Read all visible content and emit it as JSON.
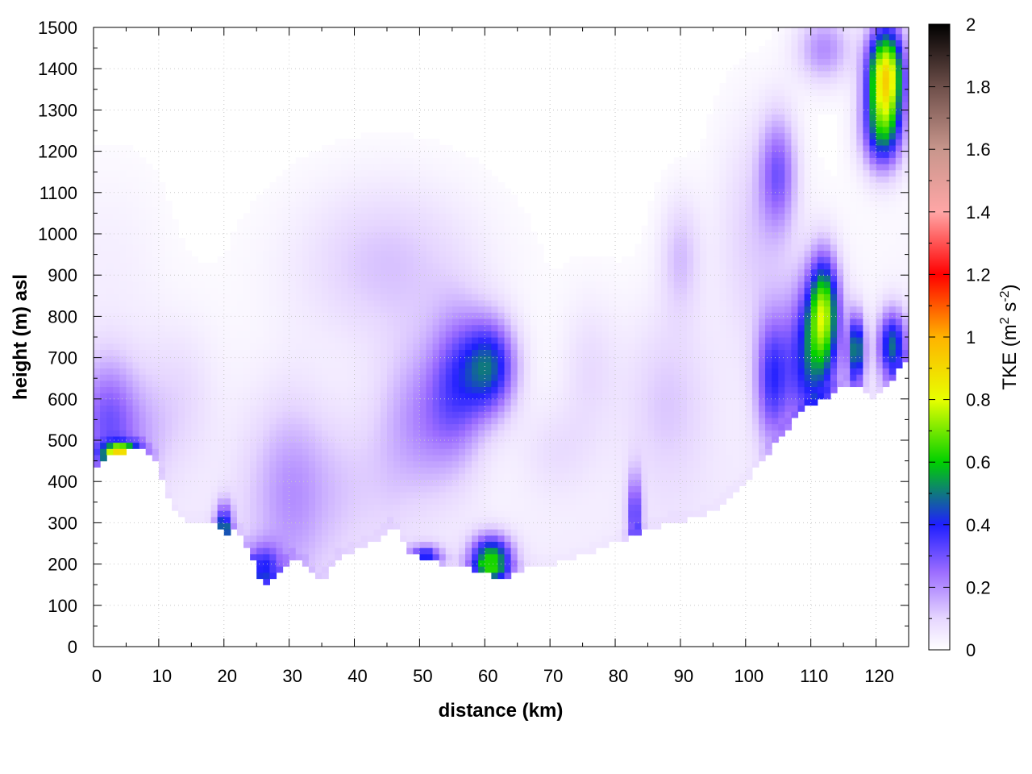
{
  "chart_data": {
    "type": "heatmap",
    "xlabel": "distance (km)",
    "ylabel": "height (m) asl",
    "colorbar_label_main": "TKE (m",
    "colorbar_label_sup1": "2",
    "colorbar_label_mid": " s",
    "colorbar_label_sup2": "-2",
    "colorbar_label_end": ")",
    "xlim": [
      0,
      125
    ],
    "ylim": [
      0,
      1500
    ],
    "clim": [
      0,
      2
    ],
    "x_ticks": [
      0,
      10,
      20,
      30,
      40,
      50,
      60,
      70,
      80,
      90,
      100,
      110,
      120
    ],
    "y_ticks": [
      0,
      100,
      200,
      300,
      400,
      500,
      600,
      700,
      800,
      900,
      1000,
      1100,
      1200,
      1300,
      1400,
      1500
    ],
    "c_ticks": [
      0,
      0.2,
      0.4,
      0.6,
      0.8,
      1,
      1.2,
      1.4,
      1.6,
      1.8,
      2
    ],
    "x_tick_labels": [
      "0",
      "10",
      "20",
      "30",
      "40",
      "50",
      "60",
      "70",
      "80",
      "90",
      "100",
      "110",
      "120"
    ],
    "y_tick_labels": [
      "0",
      "100",
      "200",
      "300",
      "400",
      "500",
      "600",
      "700",
      "800",
      "900",
      "1000",
      "1100",
      "1200",
      "1300",
      "1400",
      "1500"
    ],
    "c_tick_labels": [
      "0",
      "0.2",
      "0.4",
      "0.6",
      "0.8",
      "1",
      "1.2",
      "1.4",
      "1.6",
      "1.8",
      "2"
    ],
    "grid": true,
    "colormap": [
      {
        "v": 0.0,
        "c": "#ffffff"
      },
      {
        "v": 0.1,
        "c": "#e6d6ff"
      },
      {
        "v": 0.25,
        "c": "#9b6cff"
      },
      {
        "v": 0.4,
        "c": "#1f1fff"
      },
      {
        "v": 0.6,
        "c": "#00d000"
      },
      {
        "v": 0.8,
        "c": "#e8ff00"
      },
      {
        "v": 1.0,
        "c": "#ffb300"
      },
      {
        "v": 1.2,
        "c": "#ff0000"
      },
      {
        "v": 1.4,
        "c": "#ffa6a6"
      },
      {
        "v": 1.6,
        "c": "#c8968c"
      },
      {
        "v": 1.8,
        "c": "#6e4f4a"
      },
      {
        "v": 2.0,
        "c": "#000000"
      }
    ],
    "terrain": [
      [
        0,
        420
      ],
      [
        2,
        455
      ],
      [
        4,
        470
      ],
      [
        6,
        480
      ],
      [
        8,
        478
      ],
      [
        10,
        440
      ],
      [
        12,
        330
      ],
      [
        14,
        305
      ],
      [
        16,
        300
      ],
      [
        18,
        300
      ],
      [
        19.5,
        285
      ],
      [
        20,
        270
      ],
      [
        22,
        285
      ],
      [
        24,
        230
      ],
      [
        25.5,
        160
      ],
      [
        27,
        155
      ],
      [
        28.5,
        175
      ],
      [
        30,
        215
      ],
      [
        32,
        200
      ],
      [
        34,
        170
      ],
      [
        35,
        155
      ],
      [
        36,
        180
      ],
      [
        38,
        220
      ],
      [
        40,
        230
      ],
      [
        42,
        245
      ],
      [
        44,
        265
      ],
      [
        46,
        295
      ],
      [
        48,
        235
      ],
      [
        50,
        215
      ],
      [
        52,
        210
      ],
      [
        54,
        200
      ],
      [
        56,
        195
      ],
      [
        58,
        190
      ],
      [
        60,
        180
      ],
      [
        62,
        160
      ],
      [
        64,
        175
      ],
      [
        66,
        190
      ],
      [
        68,
        195
      ],
      [
        70,
        198
      ],
      [
        72,
        205
      ],
      [
        74,
        215
      ],
      [
        76,
        225
      ],
      [
        78,
        240
      ],
      [
        80,
        255
      ],
      [
        82,
        260
      ],
      [
        84,
        275
      ],
      [
        86,
        290
      ],
      [
        88,
        298
      ],
      [
        90,
        305
      ],
      [
        92,
        310
      ],
      [
        94,
        320
      ],
      [
        96,
        340
      ],
      [
        98,
        370
      ],
      [
        100,
        400
      ],
      [
        102,
        440
      ],
      [
        104,
        480
      ],
      [
        106,
        520
      ],
      [
        108,
        560
      ],
      [
        110,
        590
      ],
      [
        112,
        600
      ],
      [
        114,
        620
      ],
      [
        116,
        640
      ],
      [
        118,
        620
      ],
      [
        119.5,
        600
      ],
      [
        121,
        620
      ],
      [
        123,
        660
      ],
      [
        125,
        700
      ]
    ],
    "blobs": [
      {
        "x": 2,
        "y": 560,
        "sx": 3.5,
        "sy": 110,
        "v": 0.22
      },
      {
        "x": 4,
        "y": 470,
        "sx": 2.0,
        "sy": 18,
        "v": 0.55
      },
      {
        "x": 6,
        "y": 500,
        "sx": 5,
        "sy": 90,
        "v": 0.07
      },
      {
        "x": 2,
        "y": 950,
        "sx": 6,
        "sy": 160,
        "v": 0.03
      },
      {
        "x": 20,
        "y": 290,
        "sx": 0.9,
        "sy": 40,
        "v": 0.4
      },
      {
        "x": 13,
        "y": 620,
        "sx": 4,
        "sy": 120,
        "v": 0.07
      },
      {
        "x": 26,
        "y": 190,
        "sx": 2.0,
        "sy": 40,
        "v": 0.3
      },
      {
        "x": 30,
        "y": 380,
        "sx": 5,
        "sy": 170,
        "v": 0.16
      },
      {
        "x": 45,
        "y": 930,
        "sx": 10,
        "sy": 140,
        "v": 0.12
      },
      {
        "x": 51,
        "y": 560,
        "sx": 5,
        "sy": 130,
        "v": 0.18
      },
      {
        "x": 56,
        "y": 650,
        "sx": 3,
        "sy": 120,
        "v": 0.22
      },
      {
        "x": 61,
        "y": 680,
        "sx": 2.8,
        "sy": 80,
        "v": 0.4
      },
      {
        "x": 61,
        "y": 210,
        "sx": 2.2,
        "sy": 40,
        "v": 0.6
      },
      {
        "x": 51,
        "y": 220,
        "sx": 1.8,
        "sy": 20,
        "v": 0.3
      },
      {
        "x": 41,
        "y": 400,
        "sx": 6,
        "sy": 120,
        "v": 0.06
      },
      {
        "x": 71,
        "y": 480,
        "sx": 4,
        "sy": 80,
        "v": 0.06
      },
      {
        "x": 76,
        "y": 680,
        "sx": 3,
        "sy": 120,
        "v": 0.07
      },
      {
        "x": 83,
        "y": 320,
        "sx": 0.8,
        "sy": 70,
        "v": 0.3
      },
      {
        "x": 90,
        "y": 950,
        "sx": 2.2,
        "sy": 100,
        "v": 0.12
      },
      {
        "x": 88,
        "y": 600,
        "sx": 5,
        "sy": 160,
        "v": 0.1
      },
      {
        "x": 104,
        "y": 650,
        "sx": 1.8,
        "sy": 110,
        "v": 0.3
      },
      {
        "x": 105,
        "y": 1150,
        "sx": 2.0,
        "sy": 100,
        "v": 0.25
      },
      {
        "x": 110,
        "y": 700,
        "sx": 2.8,
        "sy": 130,
        "v": 0.4
      },
      {
        "x": 112,
        "y": 820,
        "sx": 1.6,
        "sy": 90,
        "v": 0.55
      },
      {
        "x": 117,
        "y": 720,
        "sx": 0.9,
        "sy": 60,
        "v": 0.5
      },
      {
        "x": 122.5,
        "y": 730,
        "sx": 1.6,
        "sy": 60,
        "v": 0.45
      },
      {
        "x": 121.5,
        "y": 1390,
        "sx": 2.0,
        "sy": 80,
        "v": 0.85
      },
      {
        "x": 121,
        "y": 1250,
        "sx": 2.2,
        "sy": 70,
        "v": 0.45
      },
      {
        "x": 112,
        "y": 1450,
        "sx": 3,
        "sy": 60,
        "v": 0.2
      },
      {
        "x": 101,
        "y": 1000,
        "sx": 4,
        "sy": 200,
        "v": 0.1
      }
    ]
  }
}
